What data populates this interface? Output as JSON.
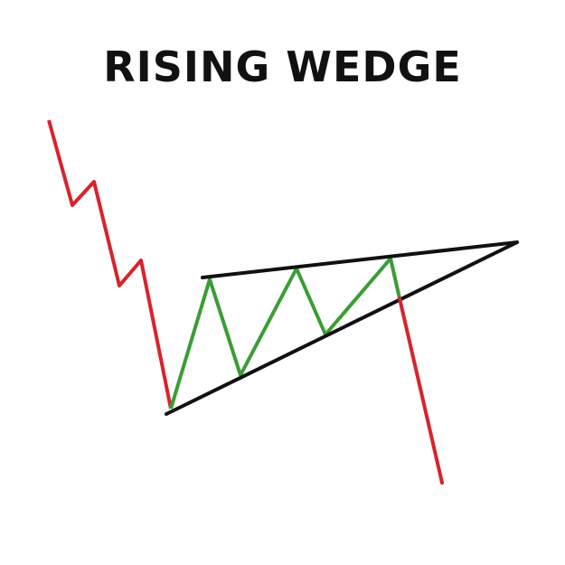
{
  "title": "RISING WEDGE",
  "colors": {
    "background": "#ffffff",
    "downtrend": "#d9232b",
    "wedge_swings": "#3b9d35",
    "trendlines": "#111111",
    "title": "#111111"
  }
}
